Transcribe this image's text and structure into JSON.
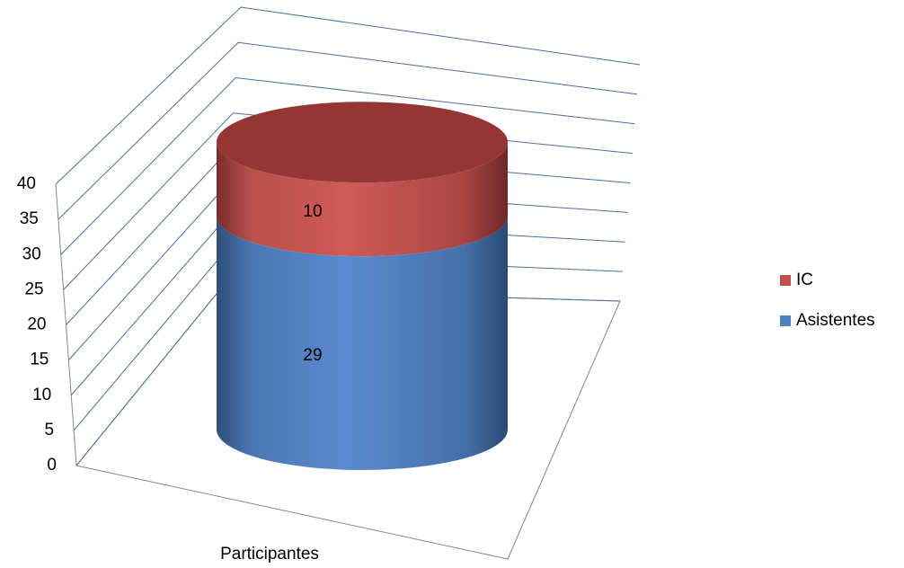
{
  "chart_data": {
    "type": "cylinder-stacked",
    "categories": [
      "Participantes"
    ],
    "series": [
      {
        "name": "Asistentes",
        "color": "#4f81bd",
        "values": [
          29
        ]
      },
      {
        "name": "IC",
        "color": "#c0504d",
        "values": [
          10
        ]
      }
    ],
    "ylim": [
      0,
      40
    ],
    "yticks": [
      0,
      5,
      10,
      15,
      20,
      25,
      30,
      35,
      40
    ],
    "grid": true,
    "legend": "right"
  }
}
